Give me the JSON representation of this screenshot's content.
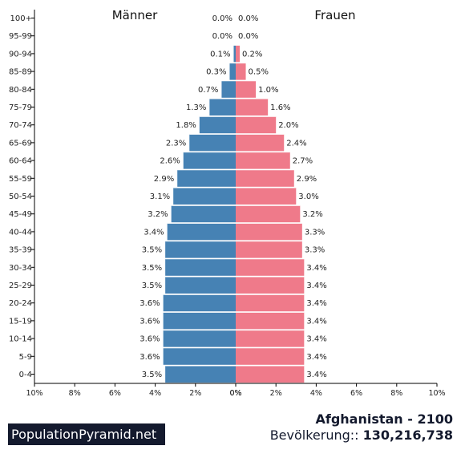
{
  "chart_data": {
    "type": "bar",
    "orientation": "horizontal",
    "layout": "population-pyramid",
    "left_label": "Männer",
    "right_label": "Frauen",
    "categories": [
      "100+",
      "95-99",
      "90-94",
      "85-89",
      "80-84",
      "75-79",
      "70-74",
      "65-69",
      "60-64",
      "55-59",
      "50-54",
      "45-49",
      "40-44",
      "35-39",
      "30-34",
      "25-29",
      "20-24",
      "15-19",
      "10-14",
      "5-9",
      "0-4"
    ],
    "series": [
      {
        "name": "Männer",
        "color": "#4682b4",
        "values": [
          0.0,
          0.0,
          0.1,
          0.3,
          0.7,
          1.3,
          1.8,
          2.3,
          2.6,
          2.9,
          3.1,
          3.2,
          3.4,
          3.5,
          3.5,
          3.5,
          3.6,
          3.6,
          3.6,
          3.6,
          3.5
        ],
        "labels": [
          "0.0%",
          "0.0%",
          "0.1%",
          "0.3%",
          "0.7%",
          "1.3%",
          "1.8%",
          "2.3%",
          "2.6%",
          "2.9%",
          "3.1%",
          "3.2%",
          "3.4%",
          "3.5%",
          "3.5%",
          "3.5%",
          "3.6%",
          "3.6%",
          "3.6%",
          "3.6%",
          "3.5%"
        ]
      },
      {
        "name": "Frauen",
        "color": "#ef7a8a",
        "values": [
          0.0,
          0.0,
          0.2,
          0.5,
          1.0,
          1.6,
          2.0,
          2.4,
          2.7,
          2.9,
          3.0,
          3.2,
          3.3,
          3.3,
          3.4,
          3.4,
          3.4,
          3.4,
          3.4,
          3.4,
          3.4
        ],
        "labels": [
          "0.0%",
          "0.0%",
          "0.2%",
          "0.5%",
          "1.0%",
          "1.6%",
          "2.0%",
          "2.4%",
          "2.7%",
          "2.9%",
          "3.0%",
          "3.2%",
          "3.3%",
          "3.3%",
          "3.4%",
          "3.4%",
          "3.4%",
          "3.4%",
          "3.4%",
          "3.4%",
          "3.4%"
        ]
      }
    ],
    "xlim": [
      0,
      10
    ],
    "x_ticks_left": [
      "10%",
      "8%",
      "6%",
      "4%",
      "2%",
      "0%"
    ],
    "x_ticks_right": [
      "0%",
      "2%",
      "4%",
      "6%",
      "8%",
      "10%"
    ],
    "grid": false
  },
  "footer": {
    "brand": "PopulationPyramid.net",
    "country_year": "Afghanistan - 2100",
    "population_label": "Bevölkerung:: ",
    "population_value": "130,216,738"
  }
}
